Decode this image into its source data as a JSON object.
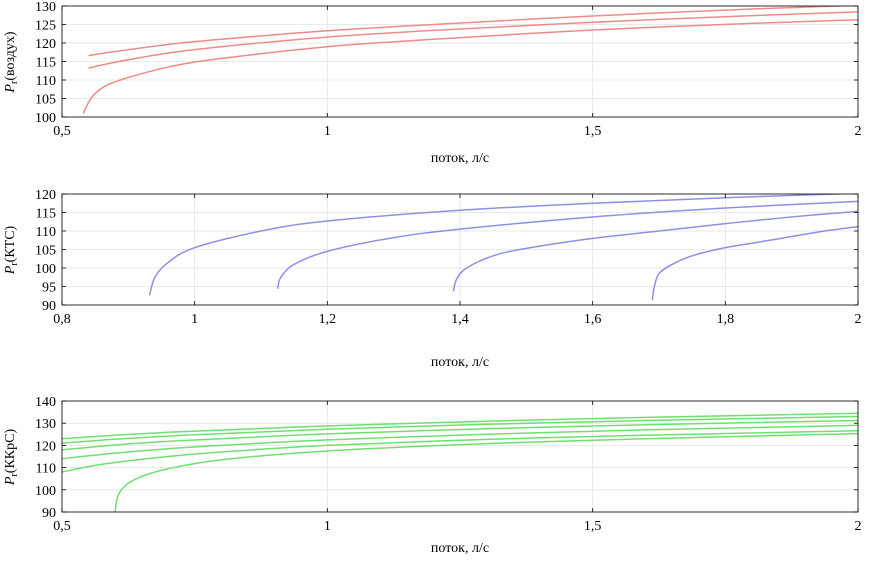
{
  "chart_data": [
    {
      "type": "line",
      "ylabel_main": "P",
      "ylabel_sub": "r",
      "ylabel_rest": "(воздух)",
      "xlabel": "поток, л/с",
      "xlim": [
        0.5,
        2
      ],
      "ylim": [
        100,
        130
      ],
      "xticks": [
        0.5,
        1,
        1.5,
        2
      ],
      "xtick_labels": [
        "0,5",
        "1",
        "1,5",
        "2"
      ],
      "yticks": [
        100,
        105,
        110,
        115,
        120,
        125,
        130
      ],
      "ytick_labels": [
        "100",
        "105",
        "110",
        "115",
        "120",
        "125",
        "130"
      ],
      "grid": true,
      "color": "#f08a8a",
      "series": [
        {
          "x": [
            0.54,
            0.56,
            0.6,
            0.7,
            0.8,
            1.0,
            1.2,
            1.5,
            1.8,
            2.0
          ],
          "y": [
            101,
            106,
            109.5,
            113.5,
            115.8,
            119,
            121,
            123.5,
            125.3,
            126.3
          ]
        },
        {
          "x": [
            0.55,
            0.6,
            0.7,
            0.8,
            1.0,
            1.2,
            1.5,
            1.8,
            2.0
          ],
          "y": [
            113.2,
            114.8,
            117.3,
            119,
            121.6,
            123.4,
            125.6,
            127.4,
            128.4
          ]
        },
        {
          "x": [
            0.55,
            0.6,
            0.7,
            0.8,
            1.0,
            1.2,
            1.5,
            1.8,
            2.0
          ],
          "y": [
            116.6,
            117.7,
            119.6,
            121,
            123.3,
            125,
            127.3,
            129.2,
            130.2
          ]
        }
      ]
    },
    {
      "type": "line",
      "ylabel_main": "P",
      "ylabel_sub": "r",
      "ylabel_rest": "(КТС)",
      "xlabel": "поток, л/с",
      "xlim": [
        0.8,
        2
      ],
      "ylim": [
        90,
        120
      ],
      "xticks": [
        0.8,
        1,
        1.2,
        1.4,
        1.6,
        1.8,
        2
      ],
      "xtick_labels": [
        "0,8",
        "1",
        "1,2",
        "1,4",
        "1,6",
        "1,8",
        "2"
      ],
      "yticks": [
        90,
        95,
        100,
        105,
        110,
        115,
        120
      ],
      "ytick_labels": [
        "90",
        "95",
        "100",
        "105",
        "110",
        "115",
        "120"
      ],
      "grid": true,
      "color": "#8f8fe6",
      "series": [
        {
          "x": [
            0.932,
            0.94,
            0.96,
            1.0,
            1.1,
            1.2,
            1.4,
            1.6,
            1.8,
            2.0
          ],
          "y": [
            92.6,
            97.5,
            101.5,
            105.5,
            110,
            112.7,
            115.6,
            117.5,
            119,
            120.2
          ]
        },
        {
          "x": [
            1.125,
            1.13,
            1.15,
            1.2,
            1.3,
            1.4,
            1.6,
            1.8,
            2.0
          ],
          "y": [
            94.4,
            97.5,
            101,
            104.5,
            108.2,
            110.5,
            113.8,
            116.2,
            118
          ]
        },
        {
          "x": [
            1.39,
            1.395,
            1.41,
            1.45,
            1.5,
            1.6,
            1.7,
            1.8,
            1.9,
            2.0
          ],
          "y": [
            93.7,
            97,
            100,
            103.3,
            105.3,
            108,
            110,
            112,
            113.8,
            115.3
          ]
        },
        {
          "x": [
            1.69,
            1.693,
            1.7,
            1.72,
            1.75,
            1.8,
            1.85,
            1.9,
            1.95,
            2.0
          ],
          "y": [
            91.3,
            95,
            98.5,
            101,
            103.3,
            105.5,
            107,
            108.5,
            110,
            111.2
          ]
        }
      ]
    },
    {
      "type": "line",
      "ylabel_main": "P",
      "ylabel_sub": "r",
      "ylabel_rest": "(ККрС)",
      "xlabel": "поток, л/с",
      "xlim": [
        0.5,
        2
      ],
      "ylim": [
        90,
        140
      ],
      "xticks": [
        0.5,
        1,
        1.5,
        2
      ],
      "xtick_labels": [
        "0,5",
        "1",
        "1,5",
        "2"
      ],
      "yticks": [
        90,
        100,
        110,
        120,
        130,
        140
      ],
      "ytick_labels": [
        "90",
        "100",
        "110",
        "120",
        "130",
        "140"
      ],
      "grid": true,
      "color": "#6fe06f",
      "series": [
        {
          "x": [
            0.6,
            0.605,
            0.62,
            0.65,
            0.7,
            0.8,
            1.0,
            1.3,
            1.6,
            2.0
          ],
          "y": [
            90,
            97,
            102,
            106,
            109.5,
            113.5,
            117.5,
            120.8,
            123,
            125.3
          ]
        },
        {
          "x": [
            0.5,
            0.55,
            0.6,
            0.7,
            0.8,
            1.0,
            1.3,
            1.6,
            2.0
          ],
          "y": [
            108,
            110.5,
            112.3,
            115,
            117,
            120,
            122.7,
            124.6,
            126.6
          ]
        },
        {
          "x": [
            0.5,
            0.6,
            0.7,
            0.8,
            1.0,
            1.3,
            1.6,
            2.0
          ],
          "y": [
            114,
            116.5,
            118.5,
            120,
            122.5,
            125,
            127,
            129
          ]
        },
        {
          "x": [
            0.5,
            0.6,
            0.7,
            0.8,
            1.0,
            1.3,
            1.6,
            2.0
          ],
          "y": [
            118,
            120.2,
            121.8,
            123,
            125.2,
            127.5,
            129.3,
            131.2
          ]
        },
        {
          "x": [
            0.5,
            0.6,
            0.7,
            0.8,
            1.0,
            1.3,
            1.6,
            2.0
          ],
          "y": [
            121,
            122.8,
            124.2,
            125.3,
            127.3,
            129.5,
            131.2,
            133
          ]
        },
        {
          "x": [
            0.5,
            0.6,
            0.7,
            0.8,
            1.0,
            1.3,
            1.6,
            2.0
          ],
          "y": [
            123,
            124.6,
            125.9,
            126.9,
            128.8,
            130.9,
            132.6,
            134.5
          ]
        }
      ]
    }
  ]
}
